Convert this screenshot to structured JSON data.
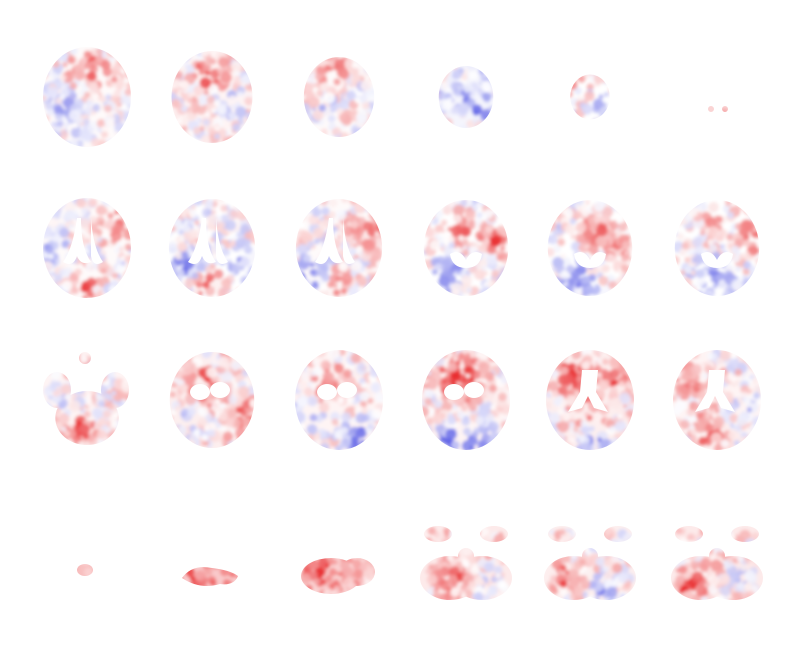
{
  "figure": {
    "description_type": "brain-slice-mosaic",
    "layout": {
      "rows": 4,
      "columns": 6
    },
    "colormap": {
      "positive": "#e8282a",
      "negative": "#3b3fe0",
      "neutral": "#ffffff"
    },
    "rows": [
      {
        "name": "superior-axial-slices",
        "slices": [
          {
            "name": "slice-r1-c1",
            "shape": "ellipse",
            "size": 1.0,
            "bias": 0.05,
            "lobes": [
              [
                0.5,
                0.22,
                0.8
              ],
              [
                0.85,
                0.3,
                0.5
              ],
              [
                0.25,
                0.65,
                -0.6
              ]
            ]
          },
          {
            "name": "slice-r1-c2",
            "shape": "ellipse",
            "size": 0.92,
            "bias": 0.1,
            "lobes": [
              [
                0.45,
                0.25,
                0.9
              ],
              [
                0.7,
                0.6,
                -0.4
              ]
            ]
          },
          {
            "name": "slice-r1-c3",
            "shape": "ellipse",
            "size": 0.8,
            "bias": 0.05,
            "lobes": [
              [
                0.45,
                0.15,
                0.9
              ],
              [
                0.3,
                0.7,
                -0.3
              ]
            ]
          },
          {
            "name": "slice-r1-c4",
            "shape": "ellipse",
            "size": 0.62,
            "bias": -0.1,
            "lobes": [
              [
                0.4,
                0.45,
                -0.6
              ],
              [
                0.65,
                0.65,
                -0.5
              ]
            ]
          },
          {
            "name": "slice-r1-c5",
            "shape": "ellipse",
            "size": 0.45,
            "bias": 0.0,
            "lobes": [
              [
                0.3,
                0.3,
                0.5
              ],
              [
                0.7,
                0.6,
                -0.4
              ]
            ]
          },
          {
            "name": "slice-r1-c6",
            "shape": "dots",
            "size": 0.18,
            "bias": 0.4,
            "lobes": []
          }
        ]
      },
      {
        "name": "mid-axial-slices",
        "slices": [
          {
            "name": "slice-r2-c1",
            "shape": "ventricle",
            "size": 1.0,
            "bias": 0.05,
            "lobes": [
              [
                0.85,
                0.25,
                0.8
              ],
              [
                0.45,
                0.85,
                0.9
              ],
              [
                0.15,
                0.6,
                -0.6
              ]
            ]
          },
          {
            "name": "slice-r2-c2",
            "shape": "ventricle",
            "size": 0.98,
            "bias": 0.0,
            "lobes": [
              [
                0.45,
                0.85,
                0.8
              ],
              [
                0.2,
                0.7,
                -0.7
              ],
              [
                0.8,
                0.7,
                -0.5
              ]
            ]
          },
          {
            "name": "slice-r2-c3",
            "shape": "ventricle",
            "size": 0.98,
            "bias": 0.05,
            "lobes": [
              [
                0.85,
                0.3,
                0.9
              ],
              [
                0.15,
                0.75,
                -0.9
              ],
              [
                0.5,
                0.9,
                0.5
              ]
            ]
          },
          {
            "name": "slice-r2-c4",
            "shape": "small-ventricle",
            "size": 0.96,
            "bias": 0.0,
            "lobes": [
              [
                0.45,
                0.3,
                0.8
              ],
              [
                0.85,
                0.4,
                0.9
              ],
              [
                0.3,
                0.75,
                -0.8
              ]
            ]
          },
          {
            "name": "slice-r2-c5",
            "shape": "small-ventricle",
            "size": 0.96,
            "bias": 0.0,
            "lobes": [
              [
                0.55,
                0.35,
                0.7
              ],
              [
                0.85,
                0.45,
                0.7
              ],
              [
                0.35,
                0.8,
                -0.8
              ]
            ]
          },
          {
            "name": "slice-r2-c6",
            "shape": "small-ventricle",
            "size": 0.96,
            "bias": 0.0,
            "lobes": [
              [
                0.45,
                0.3,
                0.5
              ],
              [
                0.9,
                0.4,
                0.7
              ],
              [
                0.45,
                0.8,
                -0.8
              ]
            ]
          }
        ]
      },
      {
        "name": "inferior-axial-slices",
        "slices": [
          {
            "name": "slice-r3-c1",
            "shape": "fragmented",
            "size": 0.9,
            "bias": 0.1,
            "lobes": [
              [
                0.4,
                0.85,
                0.9
              ],
              [
                0.2,
                0.5,
                -0.3
              ]
            ]
          },
          {
            "name": "slice-r3-c2",
            "shape": "basal",
            "size": 0.96,
            "bias": 0.15,
            "lobes": [
              [
                0.4,
                0.35,
                0.9
              ],
              [
                0.85,
                0.7,
                0.7
              ],
              [
                0.2,
                0.7,
                -0.4
              ]
            ]
          },
          {
            "name": "slice-r3-c3",
            "shape": "basal",
            "size": 1.0,
            "bias": 0.1,
            "lobes": [
              [
                0.4,
                0.35,
                0.9
              ],
              [
                0.7,
                0.9,
                -0.9
              ],
              [
                0.15,
                0.7,
                -0.5
              ]
            ]
          },
          {
            "name": "slice-r3-c4",
            "shape": "basal",
            "size": 1.0,
            "bias": 0.1,
            "lobes": [
              [
                0.35,
                0.3,
                1.0
              ],
              [
                0.55,
                0.3,
                0.9
              ],
              [
                0.3,
                0.92,
                -1.0
              ],
              [
                0.65,
                0.92,
                -1.0
              ]
            ]
          },
          {
            "name": "slice-r3-c5",
            "shape": "basal-ventricle",
            "size": 1.0,
            "bias": 0.15,
            "lobes": [
              [
                0.3,
                0.25,
                0.9
              ],
              [
                0.75,
                0.25,
                0.9
              ],
              [
                0.5,
                0.6,
                0.6
              ],
              [
                0.55,
                0.95,
                -0.8
              ]
            ]
          },
          {
            "name": "slice-r3-c6",
            "shape": "basal-ventricle",
            "size": 1.0,
            "bias": 0.1,
            "lobes": [
              [
                0.4,
                0.8,
                0.9
              ],
              [
                0.2,
                0.3,
                0.5
              ],
              [
                0.85,
                0.6,
                -0.5
              ]
            ]
          }
        ]
      },
      {
        "name": "cerebellar-slices",
        "slices": [
          {
            "name": "slice-r4-c1",
            "shape": "speck",
            "size": 0.12,
            "bias": 0.6,
            "lobes": []
          },
          {
            "name": "slice-r4-c2",
            "shape": "strip",
            "size": 0.55,
            "bias": 0.5,
            "lobes": [
              [
                0.2,
                0.6,
                1.0
              ]
            ]
          },
          {
            "name": "slice-r4-c3",
            "shape": "cerebellum-small",
            "size": 0.65,
            "bias": 0.4,
            "lobes": [
              [
                0.3,
                0.5,
                0.9
              ]
            ]
          },
          {
            "name": "slice-r4-c4",
            "shape": "cerebellum",
            "size": 0.8,
            "bias": 0.2,
            "lobes": [
              [
                0.35,
                0.6,
                0.8
              ],
              [
                0.75,
                0.7,
                -0.5
              ]
            ]
          },
          {
            "name": "slice-r4-c5",
            "shape": "cerebellum",
            "size": 0.9,
            "bias": 0.15,
            "lobes": [
              [
                0.2,
                0.6,
                0.8
              ],
              [
                0.65,
                0.75,
                -0.9
              ]
            ]
          },
          {
            "name": "slice-r4-c6",
            "shape": "cerebellum",
            "size": 0.9,
            "bias": 0.2,
            "lobes": [
              [
                0.15,
                0.7,
                1.0
              ],
              [
                0.85,
                0.6,
                -0.6
              ]
            ]
          }
        ]
      }
    ]
  }
}
